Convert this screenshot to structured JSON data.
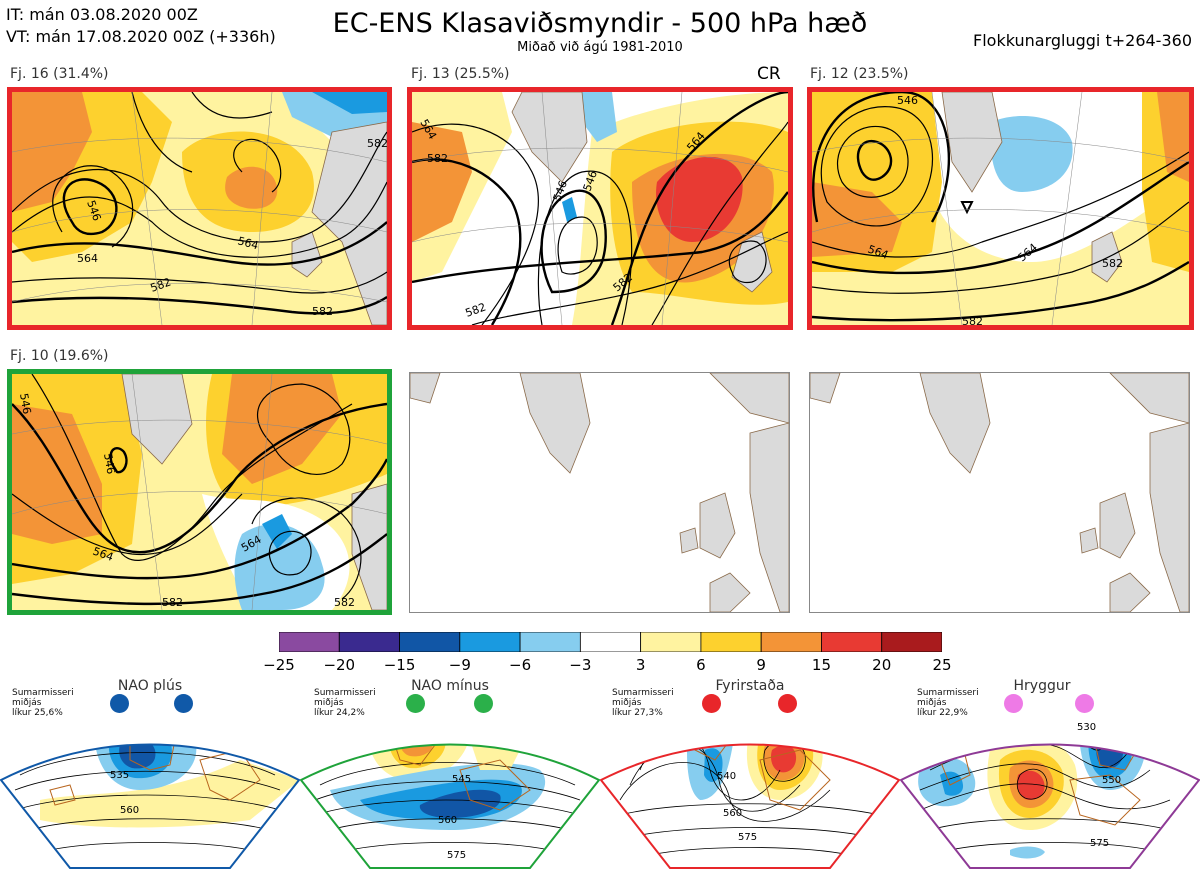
{
  "header": {
    "it_line": "IT: mán 03.08.2020 00Z",
    "vt_line": "VT: mán 17.08.2020 00Z  (+336h)",
    "title": "EC-ENS Klasaviðsmyndir - 500 hPa hæð",
    "subtitle": "Miðað við ágú 1981-2010",
    "window": "Flokkunargluggi t+264-360"
  },
  "panels": [
    {
      "label": "Fj. 16 (31.4%)",
      "frame_color": "#e8262a",
      "contours": [
        "546",
        "564",
        "564",
        "582",
        "582",
        "582"
      ]
    },
    {
      "label": "Fj. 13 (25.5%)",
      "frame_color": "#e8262a",
      "tag": "CR",
      "contours": [
        "564",
        "582",
        "546",
        "546",
        "564",
        "582",
        "582"
      ]
    },
    {
      "label": "Fj. 12 (23.5%)",
      "frame_color": "#e8262a",
      "contours": [
        "546",
        "564",
        "564",
        "582",
        "582"
      ]
    },
    {
      "label": "Fj. 10 (19.6%)",
      "frame_color": "#1fa33a",
      "contours": [
        "546",
        "546",
        "564",
        "564",
        "582",
        "582"
      ]
    }
  ],
  "colorbar": {
    "ticks": [
      "−25",
      "−20",
      "−15",
      "−9",
      "−6",
      "−3",
      "3",
      "6",
      "9",
      "15",
      "20",
      "25"
    ],
    "colors": [
      "#8a4aa0",
      "#3a2a8f",
      "#1156a6",
      "#1a9ae0",
      "#86cdef",
      "#ffffff",
      "#fff3a0",
      "#fdd12e",
      "#f39437",
      "#e83a33",
      "#a91b1d"
    ]
  },
  "regimes": [
    {
      "title": "NAO plús",
      "info": [
        "Sumarmisseri",
        "miðjás",
        "líkur 25,6%"
      ],
      "color": "#1059a8",
      "dot_color": "#1059a8",
      "contours": [
        "535",
        "560"
      ]
    },
    {
      "title": "NAO mínus",
      "info": [
        "Sumarmisseri",
        "miðjás",
        "líkur 24,2%"
      ],
      "color": "#1fa33a",
      "dot_color": "#2bb04a",
      "contours": [
        "545",
        "560",
        "575"
      ]
    },
    {
      "title": "Fyrirstaða",
      "info": [
        "Sumarmisseri",
        "miðjás",
        "líkur 27,3%"
      ],
      "color": "#e8262a",
      "dot_color": "#e8262a",
      "contours": [
        "540",
        "560",
        "575"
      ]
    },
    {
      "title": "Hryggur",
      "info": [
        "Sumarmisseri",
        "miðjás",
        "líkur 22,9%"
      ],
      "color": "#8e3a96",
      "dot_color": "#ee7ae6",
      "contours": [
        "530",
        "550",
        "575"
      ]
    }
  ]
}
